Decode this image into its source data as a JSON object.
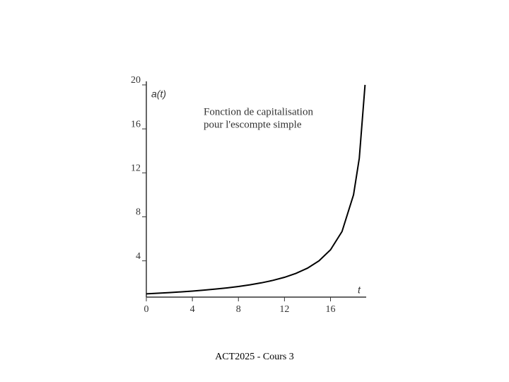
{
  "chart_data": {
    "type": "line",
    "x_label": "t",
    "y_label": "a(t)",
    "annotation": [
      "Fonction de capitalisation",
      "pour l'escompte simple"
    ],
    "x": [
      0,
      1,
      2,
      3,
      4,
      5,
      6,
      7,
      8,
      9,
      10,
      11,
      12,
      13,
      14,
      15,
      16,
      17,
      18,
      18.5,
      19
    ],
    "values": [
      1,
      1.0526,
      1.1111,
      1.1765,
      1.25,
      1.3333,
      1.4286,
      1.5385,
      1.6667,
      1.8182,
      2,
      2.2222,
      2.5,
      2.8571,
      3.3333,
      4,
      5,
      6.6667,
      10,
      13.3333,
      20
    ],
    "color": "#000000",
    "xlim": [
      0,
      19.1
    ],
    "xticks": [
      0,
      4,
      8,
      12,
      16
    ],
    "ylim": [
      0.7,
      20
    ],
    "yticks": [
      4,
      8,
      12,
      16,
      20
    ],
    "grid": false
  },
  "footer": "ACT2025 - Cours 3"
}
